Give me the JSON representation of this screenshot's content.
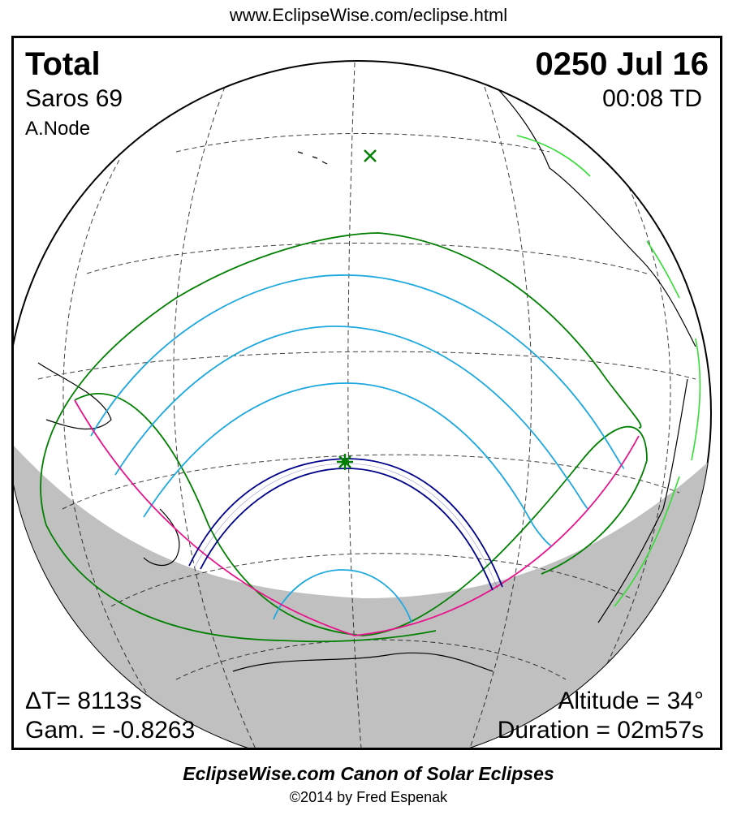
{
  "header": {
    "url": "www.EclipseWise.com/eclipse.html"
  },
  "eclipse": {
    "type": "Total",
    "date": "0250 Jul 16",
    "saros": "Saros  69",
    "time": "00:08 TD",
    "node": "A.Node",
    "delta_t": "ΔT=   8113s",
    "gamma": "Gam. = -0.8263",
    "altitude": "Altitude = 34°",
    "duration": "Duration = 02m57s"
  },
  "footer": {
    "title": "EclipseWise.com Canon of Solar Eclipses",
    "copyright": "©2014 by Fred Espenak"
  },
  "map_colors": {
    "globe_outline": "#000000",
    "night_shade": "#c0c0c0",
    "graticule": "#000000",
    "coastline_highlight": "#33dd33",
    "penumbral_limit": "#008000",
    "magnitude_curves": "#1ea8e0",
    "totality_path": "#00008b",
    "horizon_limit": "#e8148c",
    "greatest_eclipse_marker": "#008000"
  }
}
